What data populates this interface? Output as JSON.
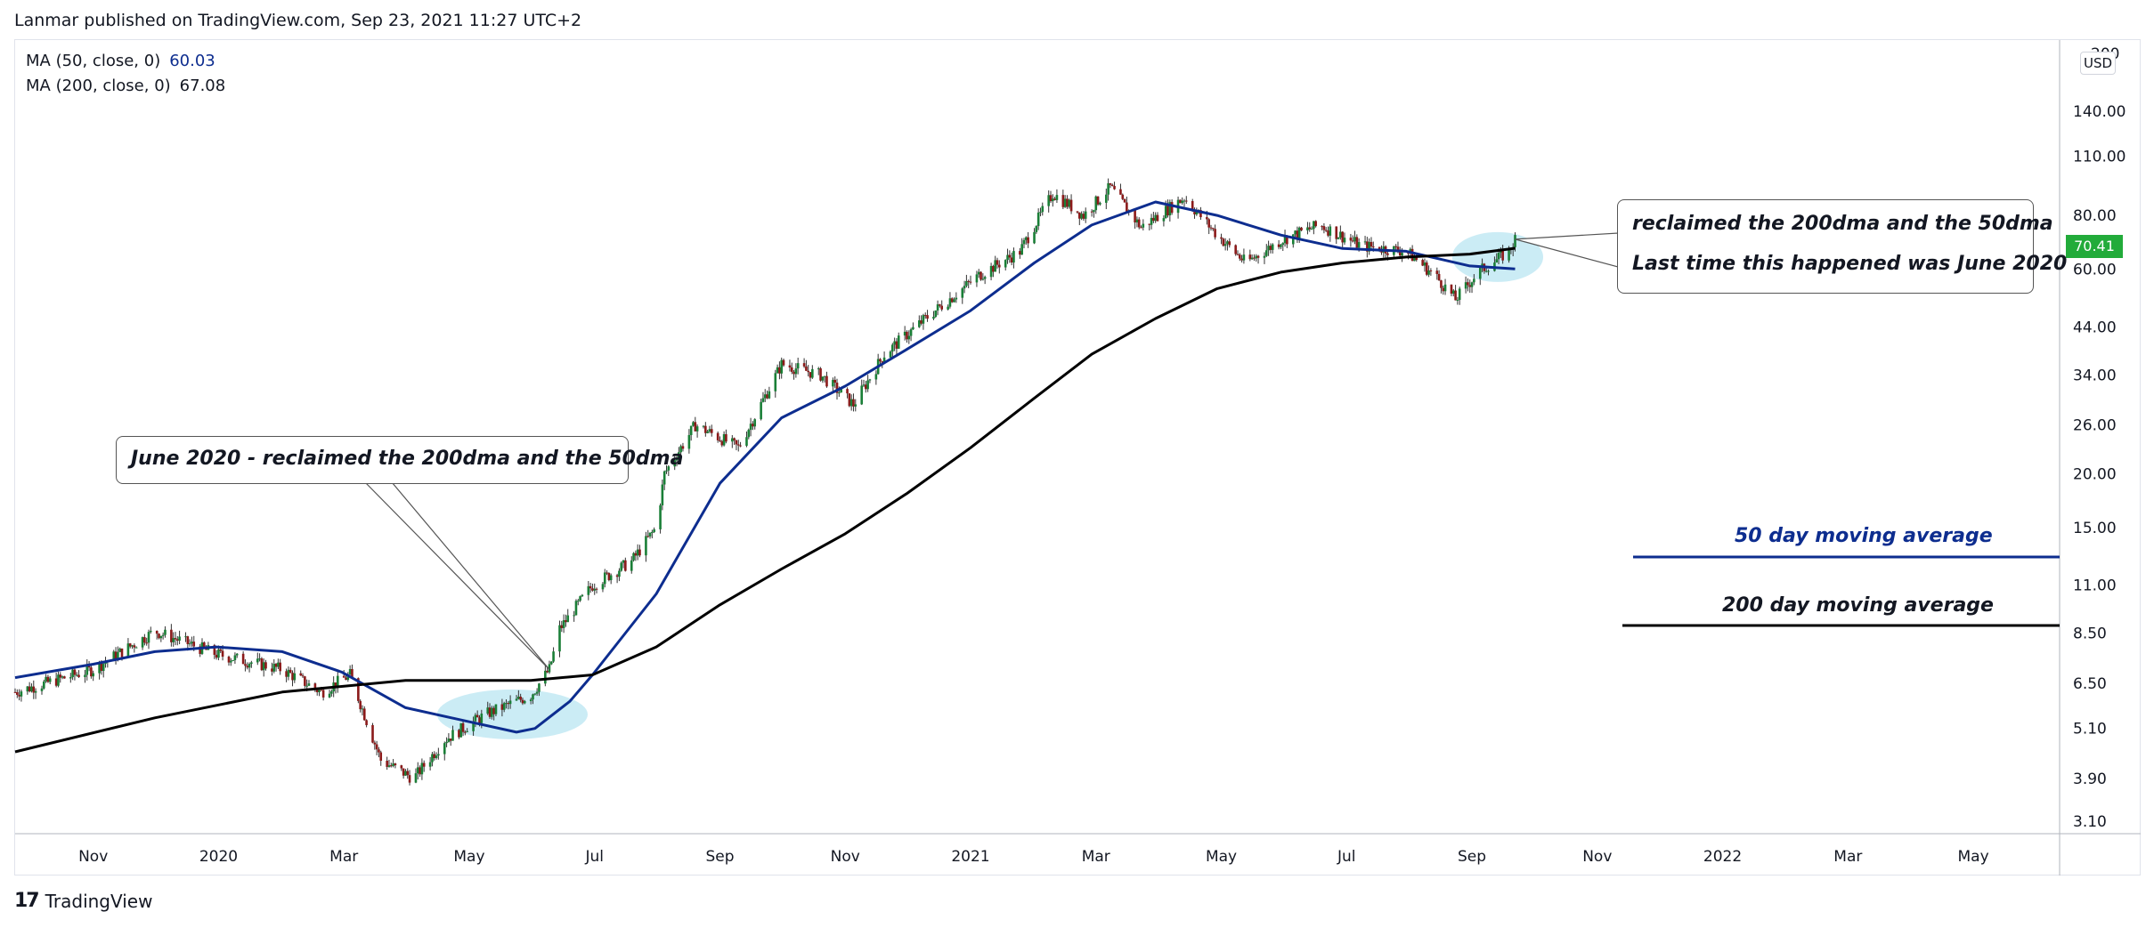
{
  "header": {
    "text": "Lanmar published on TradingView.com, Sep 23, 2021 11:27 UTC+2"
  },
  "legend": [
    {
      "label": "MA (50, close, 0)",
      "value": "60.03",
      "color": "#0d2d8f"
    },
    {
      "label": "MA (200, close, 0)",
      "value": "67.08",
      "color": "#131722"
    }
  ],
  "currency": "USD",
  "last_price": "70.41",
  "annotations": {
    "left": "June 2020 - reclaimed the 200dma and the 50dma",
    "right_line1": "reclaimed the 200dma and the 50dma",
    "right_line2": "Last time this happened was June 2020",
    "ma50_label": "50 day moving average",
    "ma200_label": "200 day moving average"
  },
  "footer": {
    "logo": "17",
    "brand": "TradingView"
  },
  "colors": {
    "ma50": "#0d2d8f",
    "ma200": "#000000",
    "up": "#1a7f37",
    "down": "#8b1a1a",
    "highlight": "#b9e6f2",
    "price_tag": "#22ab3a"
  },
  "chart_data": {
    "type": "line",
    "scale": "log",
    "x_ticks": [
      "Nov",
      "2020",
      "Mar",
      "May",
      "Jul",
      "Sep",
      "Nov",
      "2021",
      "Mar",
      "May",
      "Jul",
      "Sep",
      "Nov",
      "2022",
      "Mar",
      "May"
    ],
    "y_ticks": [
      "140.00",
      "110.00",
      "80.00",
      "60.00",
      "44.00",
      "34.00",
      "26.00",
      "20.00",
      "15.00",
      "11.00",
      "8.50",
      "6.50",
      "5.10",
      "3.90",
      "3.10"
    ],
    "y_top_tick": "200",
    "ylim": [
      2.9,
      205
    ],
    "xlim": [
      "2019-09-24",
      "2022-06-15"
    ],
    "series": [
      {
        "name": "MA (50, close, 0)",
        "points": [
          [
            "2019-09-24",
            6.7
          ],
          [
            "2019-11-01",
            7.2
          ],
          [
            "2019-12-01",
            7.7
          ],
          [
            "2019-12-31",
            7.9
          ],
          [
            "2020-02-01",
            7.7
          ],
          [
            "2020-03-01",
            6.9
          ],
          [
            "2020-04-01",
            5.7
          ],
          [
            "2020-05-01",
            5.3
          ],
          [
            "2020-05-25",
            5.0
          ],
          [
            "2020-06-03",
            5.1
          ],
          [
            "2020-06-20",
            5.9
          ],
          [
            "2020-07-01",
            6.8
          ],
          [
            "2020-08-01",
            10.5
          ],
          [
            "2020-09-01",
            19
          ],
          [
            "2020-10-01",
            27
          ],
          [
            "2020-11-01",
            32
          ],
          [
            "2020-12-01",
            39
          ],
          [
            "2021-01-01",
            48
          ],
          [
            "2021-02-01",
            62
          ],
          [
            "2021-03-01",
            76
          ],
          [
            "2021-04-01",
            86
          ],
          [
            "2021-05-01",
            80
          ],
          [
            "2021-06-01",
            72
          ],
          [
            "2021-07-01",
            67
          ],
          [
            "2021-08-01",
            66
          ],
          [
            "2021-09-01",
            61
          ],
          [
            "2021-09-23",
            60.03
          ]
        ]
      },
      {
        "name": "MA (200, close, 0)",
        "points": [
          [
            "2019-09-24",
            4.5
          ],
          [
            "2019-12-01",
            5.4
          ],
          [
            "2020-02-01",
            6.2
          ],
          [
            "2020-04-01",
            6.6
          ],
          [
            "2020-06-01",
            6.6
          ],
          [
            "2020-07-01",
            6.8
          ],
          [
            "2020-08-01",
            7.9
          ],
          [
            "2020-09-01",
            9.9
          ],
          [
            "2020-10-01",
            12
          ],
          [
            "2020-11-01",
            14.5
          ],
          [
            "2020-12-01",
            18
          ],
          [
            "2021-01-01",
            23
          ],
          [
            "2021-02-01",
            30
          ],
          [
            "2021-03-01",
            38
          ],
          [
            "2021-04-01",
            46
          ],
          [
            "2021-05-01",
            54
          ],
          [
            "2021-06-01",
            59
          ],
          [
            "2021-07-01",
            62
          ],
          [
            "2021-08-01",
            64
          ],
          [
            "2021-09-01",
            65
          ],
          [
            "2021-09-23",
            67.08
          ]
        ]
      }
    ],
    "price_path": [
      [
        "2019-09-24",
        6.2
      ],
      [
        "2019-11-01",
        7.0
      ],
      [
        "2019-12-01",
        8.6
      ],
      [
        "2019-12-31",
        7.6
      ],
      [
        "2020-02-01",
        7.0
      ],
      [
        "2020-02-20",
        6.2
      ],
      [
        "2020-03-05",
        6.8
      ],
      [
        "2020-03-20",
        4.3
      ],
      [
        "2020-04-05",
        3.9
      ],
      [
        "2020-04-20",
        4.8
      ],
      [
        "2020-05-10",
        5.5
      ],
      [
        "2020-06-01",
        6.1
      ],
      [
        "2020-06-10",
        7.0
      ],
      [
        "2020-06-15",
        8.7
      ],
      [
        "2020-07-01",
        11
      ],
      [
        "2020-07-20",
        12.5
      ],
      [
        "2020-08-01",
        15
      ],
      [
        "2020-08-05",
        20
      ],
      [
        "2020-08-20",
        26
      ],
      [
        "2020-09-10",
        23
      ],
      [
        "2020-10-01",
        36
      ],
      [
        "2020-10-20",
        34
      ],
      [
        "2020-11-05",
        29
      ],
      [
        "2020-11-20",
        38
      ],
      [
        "2020-12-10",
        46
      ],
      [
        "2021-01-05",
        58
      ],
      [
        "2021-01-25",
        66
      ],
      [
        "2021-02-10",
        90
      ],
      [
        "2021-02-25",
        80
      ],
      [
        "2021-03-10",
        93
      ],
      [
        "2021-03-25",
        75
      ],
      [
        "2021-04-15",
        88
      ],
      [
        "2021-05-01",
        72
      ],
      [
        "2021-05-15",
        62
      ],
      [
        "2021-06-01",
        70
      ],
      [
        "2021-06-20",
        76
      ],
      [
        "2021-07-10",
        68
      ],
      [
        "2021-08-01",
        66
      ],
      [
        "2021-08-15",
        58
      ],
      [
        "2021-08-25",
        51
      ],
      [
        "2021-09-05",
        59
      ],
      [
        "2021-09-20",
        66
      ],
      [
        "2021-09-23",
        70.41
      ]
    ],
    "highlights": [
      {
        "x0": "2020-04-25",
        "x1": "2020-06-20",
        "y_center": 5.5
      },
      {
        "x0": "2021-09-01",
        "x1": "2021-09-28",
        "y_center": 64
      }
    ]
  }
}
